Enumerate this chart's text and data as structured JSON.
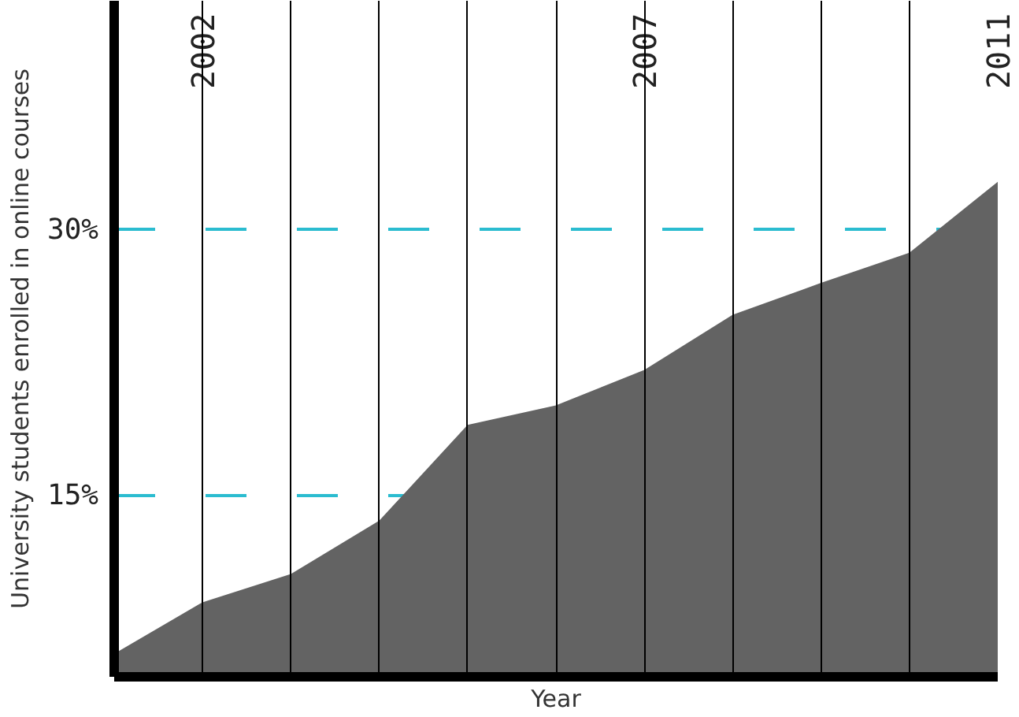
{
  "chart_data": {
    "type": "area",
    "xlabel": "Year",
    "ylabel": "University students enrolled in online courses",
    "x": [
      2001,
      2002,
      2003,
      2004,
      2005,
      2006,
      2007,
      2008,
      2009,
      2010,
      2011
    ],
    "values": [
      6.1,
      9.0,
      10.6,
      13.6,
      19.0,
      20.1,
      22.1,
      25.2,
      27.0,
      28.7,
      32.7
    ],
    "color": "#636363",
    "xlim": [
      2001,
      2011
    ],
    "ylim": [
      4.8,
      42.9
    ],
    "xticks": [
      {
        "value": 2002,
        "label": "2002"
      },
      {
        "value": 2003,
        "label": null
      },
      {
        "value": 2004,
        "label": null
      },
      {
        "value": 2005,
        "label": null
      },
      {
        "value": 2006,
        "label": null
      },
      {
        "value": 2007,
        "label": "2007"
      },
      {
        "value": 2008,
        "label": null
      },
      {
        "value": 2009,
        "label": null
      },
      {
        "value": 2010,
        "label": null
      },
      {
        "value": 2011,
        "label": "2011"
      }
    ],
    "yticks": [
      {
        "value": 15,
        "label": "15%"
      },
      {
        "value": 30,
        "label": "30%"
      }
    ],
    "grid": true
  }
}
